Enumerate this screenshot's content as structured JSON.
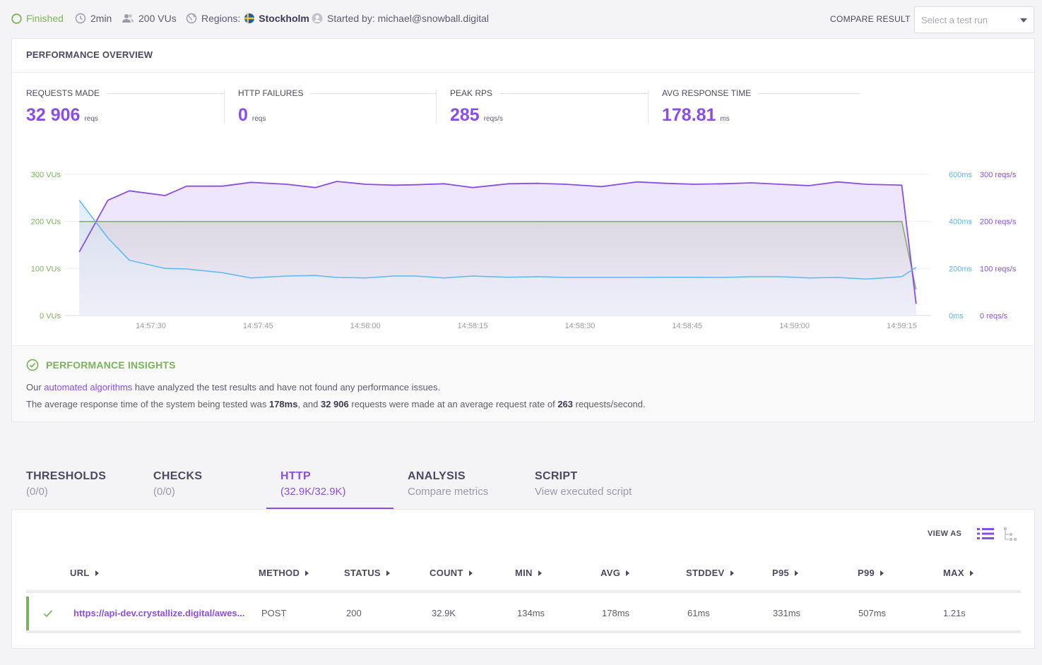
{
  "status": {
    "state": "Finished",
    "duration": "2min",
    "vus": "200 VUs",
    "regions_label": "Regions:",
    "region": "Stockholm",
    "started_by": "Started by: michael@snowball.digital"
  },
  "compare": {
    "label": "COMPARE RESULT",
    "placeholder": "Select a test run"
  },
  "overview": {
    "title": "PERFORMANCE OVERVIEW",
    "stats": [
      {
        "label": "REQUESTS MADE",
        "value": "32 906",
        "unit": "reqs"
      },
      {
        "label": "HTTP FAILURES",
        "value": "0",
        "unit": "reqs"
      },
      {
        "label": "PEAK RPS",
        "value": "285",
        "unit": "reqs/s"
      },
      {
        "label": "AVG RESPONSE TIME",
        "value": "178.81",
        "unit": "ms"
      }
    ]
  },
  "chart_data": {
    "type": "line",
    "x": [
      "14:57:20",
      "14:57:24",
      "14:57:27",
      "14:57:32",
      "14:57:35",
      "14:57:40",
      "14:57:44",
      "14:57:49",
      "14:57:53",
      "14:57:56",
      "14:58:00",
      "14:58:04",
      "14:58:07",
      "14:58:11",
      "14:58:15",
      "14:58:20",
      "14:58:24",
      "14:58:28",
      "14:58:33",
      "14:58:38",
      "14:58:42",
      "14:58:46",
      "14:58:50",
      "14:58:54",
      "14:58:58",
      "14:59:02",
      "14:59:06",
      "14:59:10",
      "14:59:15",
      "14:59:17"
    ],
    "x_ticks": [
      "14:57:30",
      "14:57:45",
      "14:58:00",
      "14:58:15",
      "14:58:30",
      "14:58:45",
      "14:59:00",
      "14:59:15"
    ],
    "series": [
      {
        "axis": "vus",
        "values": [
          200,
          200,
          200,
          200,
          200,
          200,
          200,
          200,
          200,
          200,
          200,
          200,
          200,
          200,
          200,
          200,
          200,
          200,
          200,
          200,
          200,
          200,
          200,
          200,
          200,
          200,
          200,
          200,
          200,
          55
        ],
        "color": "#7cb35a"
      },
      {
        "axis": "rps",
        "values": [
          135,
          245,
          265,
          255,
          275,
          275,
          283,
          279,
          272,
          285,
          279,
          277,
          278,
          280,
          272,
          280,
          281,
          279,
          274,
          284,
          281,
          279,
          280,
          282,
          279,
          276,
          284,
          279,
          277,
          25
        ],
        "color": "#8a4ee8"
      },
      {
        "axis": "response_time",
        "values": [
          490,
          330,
          235,
          200,
          198,
          182,
          160,
          168,
          170,
          162,
          160,
          168,
          168,
          160,
          168,
          163,
          165,
          162,
          162,
          162,
          163,
          163,
          162,
          165,
          165,
          160,
          162,
          155,
          165,
          205
        ],
        "color": "#5bb8f0"
      }
    ],
    "axes": {
      "vus": {
        "ticks": [
          "0 VUs",
          "100 VUs",
          "200 VUs",
          "300 VUs"
        ],
        "range": [
          0,
          300
        ]
      },
      "response_time": {
        "ticks": [
          "0ms",
          "200ms",
          "400ms",
          "600ms"
        ],
        "range": [
          0,
          600
        ]
      },
      "rps": {
        "ticks": [
          "0 reqs/s",
          "100 reqs/s",
          "200 reqs/s",
          "300 reqs/s"
        ],
        "range": [
          0,
          300
        ]
      }
    },
    "grid": true
  },
  "insights": {
    "title": "PERFORMANCE INSIGHTS",
    "line1_pre": "Our ",
    "line1_link": "automated algorithms",
    "line1_post": " have analyzed the test results and have not found any performance issues.",
    "line2_a": "The average response time of the system being tested was ",
    "line2_b": "178ms",
    "line2_c": ", and ",
    "line2_d": "32 906",
    "line2_e": " requests were made at an average request rate of ",
    "line2_f": "263",
    "line2_g": " requests/second."
  },
  "tabs": [
    {
      "title": "THRESHOLDS",
      "sub": "(0/0)"
    },
    {
      "title": "CHECKS",
      "sub": "(0/0)"
    },
    {
      "title": "HTTP",
      "sub": "(32.9K/32.9K)"
    },
    {
      "title": "ANALYSIS",
      "sub": "Compare metrics"
    },
    {
      "title": "SCRIPT",
      "sub": "View executed script"
    }
  ],
  "http": {
    "view_as": "VIEW AS",
    "columns": [
      "URL",
      "METHOD",
      "STATUS",
      "COUNT",
      "MIN",
      "AVG",
      "STDDEV",
      "P95",
      "P99",
      "MAX"
    ],
    "rows": [
      {
        "url": "https://api-dev.crystallize.digital/awes...",
        "method": "POST",
        "status": "200",
        "count": "32.9K",
        "min": "134ms",
        "avg": "178ms",
        "stddev": "61ms",
        "p95": "331ms",
        "p99": "507ms",
        "max": "1.21s"
      }
    ]
  },
  "colors": {
    "accent": "#8a4ee8",
    "success": "#7cb35a",
    "response": "#5bb8f0"
  }
}
